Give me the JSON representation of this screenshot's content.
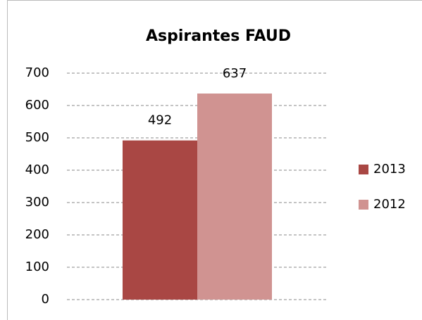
{
  "chart_data": {
    "type": "bar",
    "title": "Aspirantes FAUD",
    "categories": [
      null
    ],
    "series": [
      {
        "name": "2013",
        "color": "#a94744",
        "values": [
          492
        ]
      },
      {
        "name": "2012",
        "color": "#d09391",
        "values": [
          637
        ]
      }
    ],
    "ylim": [
      0,
      700
    ],
    "yticks": [
      0,
      100,
      200,
      300,
      400,
      500,
      600,
      700
    ],
    "grid": true,
    "legend": "right"
  }
}
